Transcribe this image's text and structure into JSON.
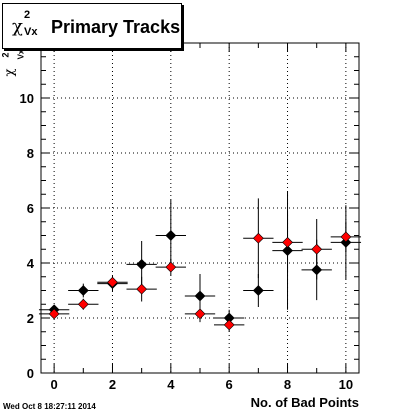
{
  "title": {
    "symbol": "χ",
    "sup": "2",
    "sub": "Vx",
    "text": "Primary Tracks"
  },
  "y_axis_label": {
    "symbol": "χ",
    "sup": "2",
    "sub": "Vx"
  },
  "timestamp": "Wed Oct  8 18:27:11 2014",
  "colors": {
    "series_black": "#000000",
    "series_red": "#ff0000",
    "grid": "#000000"
  },
  "chart_data": {
    "type": "scatter",
    "title": "Primary Tracks",
    "xlabel": "No. of Bad Points",
    "ylabel": "χ2 Vx",
    "xlim": [
      -0.45,
      10.45
    ],
    "ylim": [
      0,
      12
    ],
    "xticks": [
      0,
      2,
      4,
      6,
      8,
      10
    ],
    "yticks": [
      0,
      2,
      4,
      6,
      8,
      10
    ],
    "grid": true,
    "series": [
      {
        "color": "#000000",
        "x": [
          0,
          1,
          2,
          3,
          4,
          5,
          6,
          7,
          8,
          9,
          10
        ],
        "y": [
          2.3,
          3.0,
          3.25,
          3.95,
          5.0,
          2.8,
          2.0,
          3.0,
          4.45,
          3.75,
          4.75
        ],
        "yerr": [
          0.1,
          0.25,
          0.3,
          0.85,
          1.3,
          0.8,
          0.3,
          0.6,
          2.15,
          1.1,
          1.35
        ]
      },
      {
        "color": "#ff0000",
        "x": [
          0,
          1,
          2,
          3,
          4,
          5,
          6,
          7,
          8,
          9,
          10
        ],
        "y": [
          2.15,
          2.5,
          3.3,
          3.05,
          3.85,
          2.15,
          1.75,
          4.9,
          4.75,
          4.5,
          4.95
        ],
        "yerr": [
          0.1,
          0.2,
          0.2,
          0.45,
          0.3,
          0.3,
          0.25,
          1.45,
          1.1,
          1.1,
          0.55
        ]
      }
    ]
  }
}
